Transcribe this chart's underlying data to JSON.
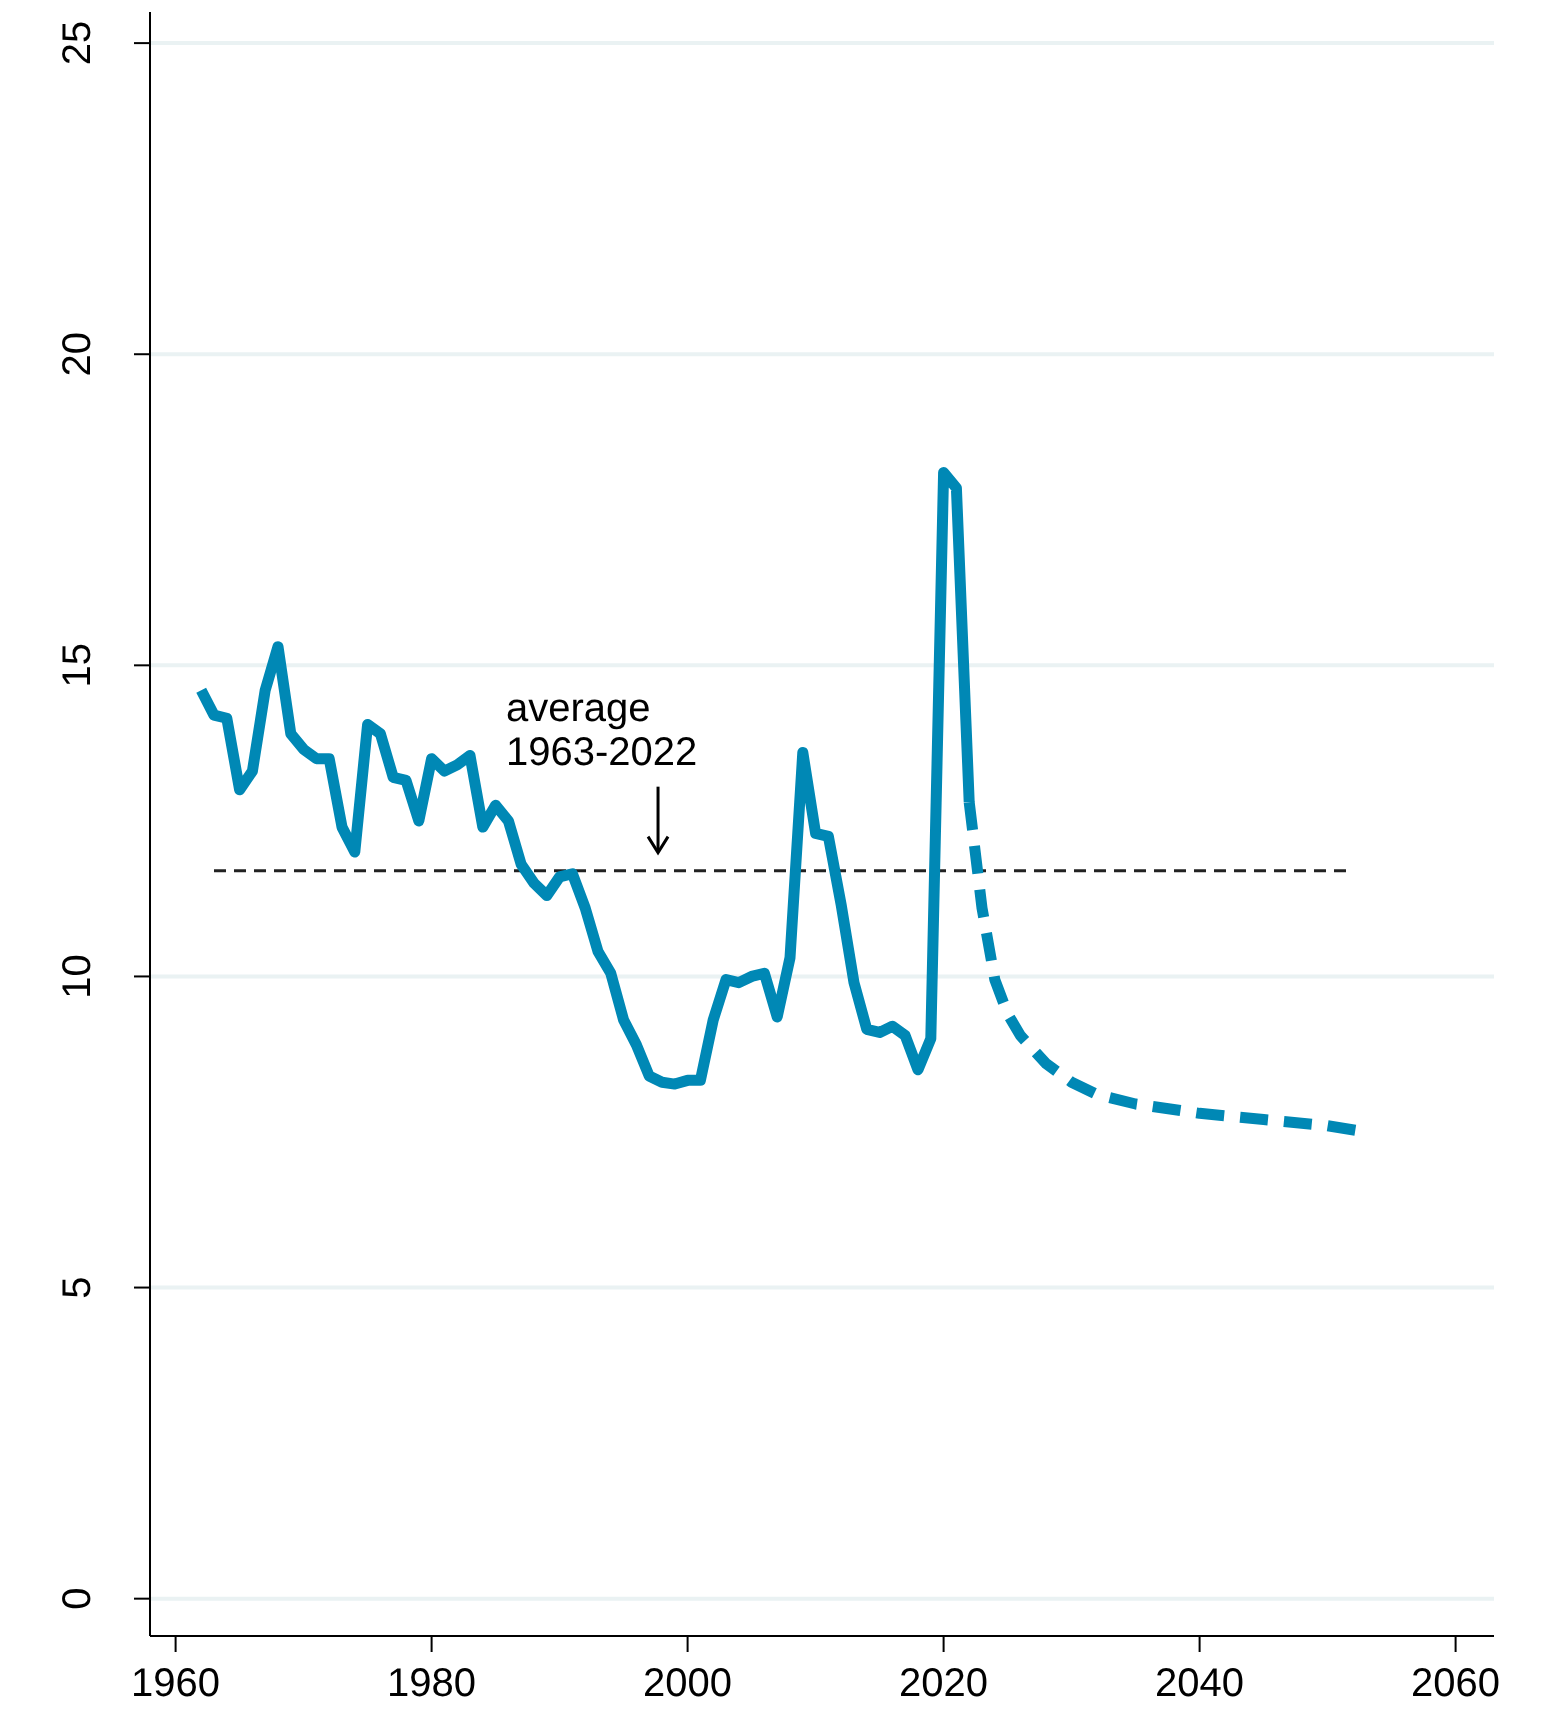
{
  "chart_data": {
    "type": "line",
    "xlim": [
      1958,
      2063
    ],
    "ylim": [
      -0.6,
      25.5
    ],
    "xticks": [
      1960,
      1980,
      2000,
      2020,
      2040,
      2060
    ],
    "yticks": [
      0,
      5,
      10,
      15,
      20,
      25
    ],
    "grid": "y",
    "marker": "none",
    "series": [
      {
        "color": "#0088b5",
        "line_style": "solid",
        "x": [
          1962,
          1963,
          1964,
          1965,
          1966,
          1967,
          1968,
          1969,
          1970,
          1971,
          1972,
          1973,
          1974,
          1975,
          1976,
          1977,
          1978,
          1979,
          1980,
          1981,
          1982,
          1983,
          1984,
          1985,
          1986,
          1987,
          1988,
          1989,
          1990,
          1991,
          1992,
          1993,
          1994,
          1995,
          1996,
          1997,
          1998,
          1999,
          2000,
          2001,
          2002,
          2003,
          2004,
          2005,
          2006,
          2007,
          2008,
          2009,
          2010,
          2011,
          2012,
          2013,
          2014,
          2015,
          2016,
          2017,
          2018,
          2019,
          2020,
          2021,
          2022
        ],
        "values": [
          14.6,
          14.2,
          14.15,
          13.0,
          13.3,
          14.6,
          15.3,
          13.9,
          13.65,
          13.5,
          13.5,
          12.4,
          12.0,
          14.05,
          13.9,
          13.2,
          13.15,
          12.5,
          13.5,
          13.3,
          13.4,
          13.55,
          12.4,
          12.75,
          12.5,
          11.8,
          11.5,
          11.3,
          11.6,
          11.65,
          11.1,
          10.4,
          10.05,
          9.3,
          8.9,
          8.4,
          8.3,
          8.27,
          8.33,
          8.33,
          9.3,
          9.95,
          9.9,
          10.0,
          10.05,
          9.35,
          10.3,
          13.6,
          12.3,
          12.25,
          11.15,
          9.9,
          9.15,
          9.1,
          9.2,
          9.05,
          8.5,
          9.0,
          18.1,
          17.85,
          12.8
        ]
      },
      {
        "color": "#0088b5",
        "line_style": "dashed",
        "x": [
          2022,
          2023,
          2024,
          2025,
          2026,
          2028,
          2030,
          2032,
          2035,
          2040,
          2045,
          2050,
          2053
        ],
        "values": [
          12.8,
          11.1,
          9.95,
          9.4,
          9.05,
          8.6,
          8.3,
          8.1,
          7.95,
          7.8,
          7.7,
          7.6,
          7.5
        ]
      }
    ],
    "ref_lines": [
      {
        "axis": "y",
        "value": 11.7,
        "label": "average\n1963-2022",
        "color": "#222222",
        "line_style": "dashed"
      }
    ]
  }
}
